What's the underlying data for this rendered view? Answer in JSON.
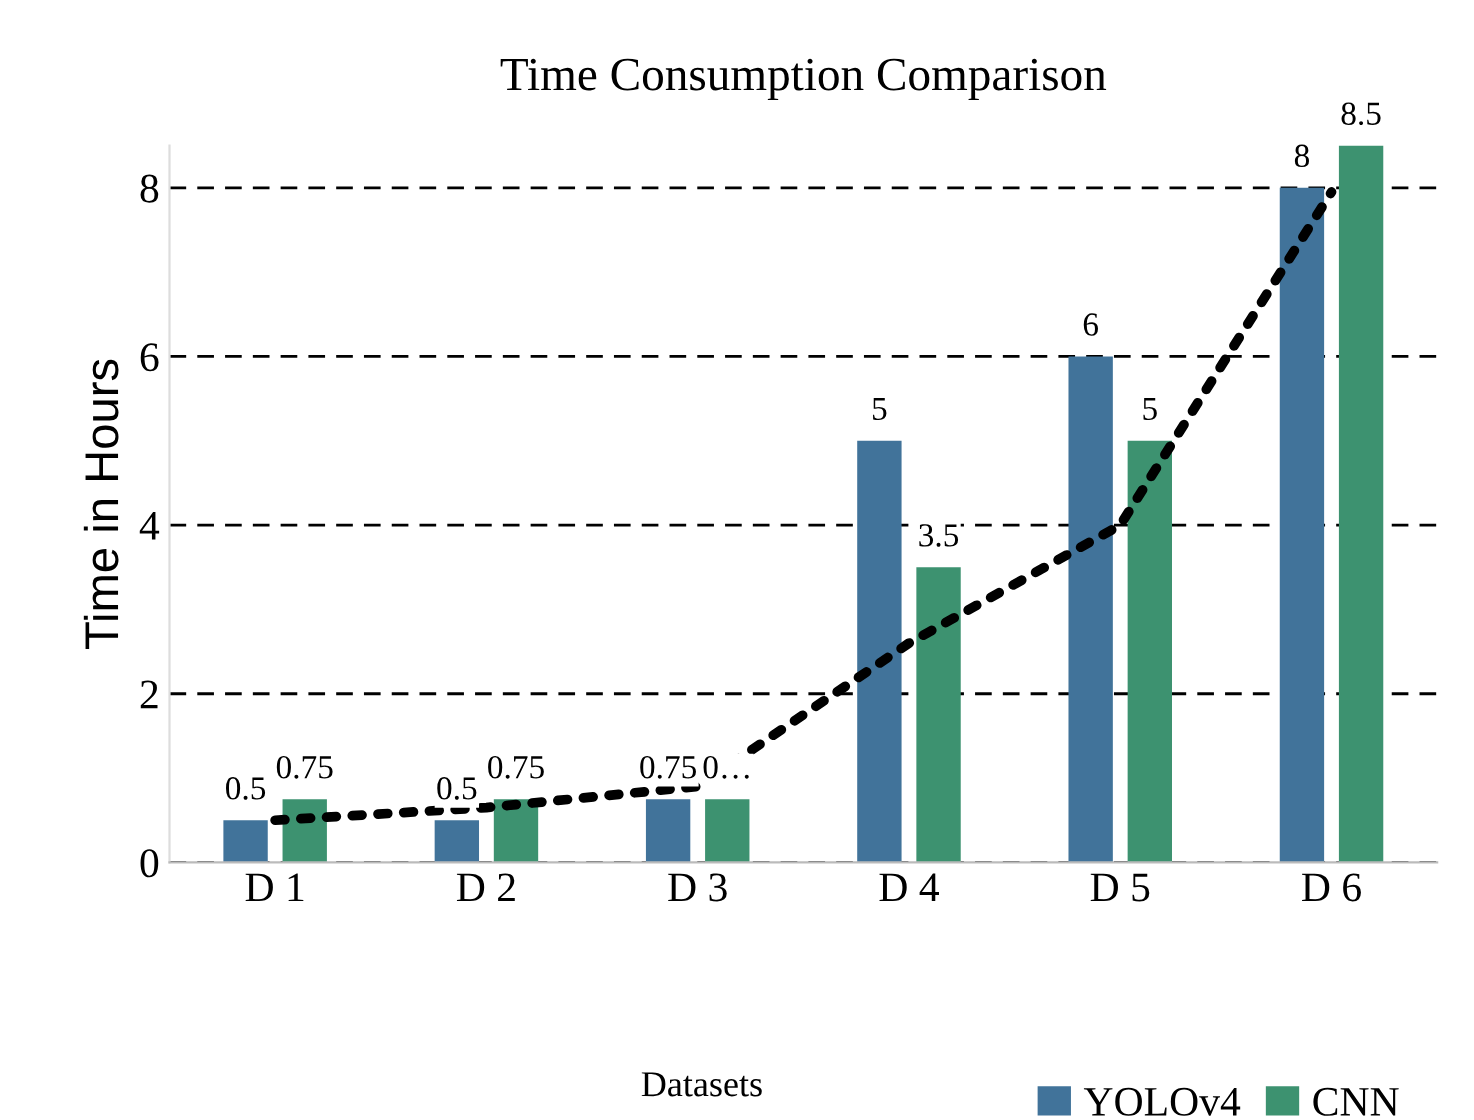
{
  "chart_data": {
    "type": "bar",
    "title": "Time Consumption Comparison",
    "xlabel": "Datasets",
    "ylabel": "Time in Hours",
    "categories": [
      "D 1",
      "D 2",
      "D 3",
      "D 4",
      "D 5",
      "D 6"
    ],
    "series": [
      {
        "name": "YOLOv4",
        "color": "#41739a",
        "values": [
          0.5,
          0.5,
          0.75,
          5,
          6,
          8
        ],
        "value_labels": [
          "0.5",
          "0.5",
          "0.75",
          "5",
          "6",
          "8"
        ]
      },
      {
        "name": "CNN",
        "color": "#3d9270",
        "values": [
          0.75,
          0.75,
          0.75,
          3.5,
          5,
          8.5
        ],
        "value_labels": [
          "0.75",
          "0.75",
          "0…",
          "3.5",
          "5",
          "8.5"
        ]
      },
      {
        "type": "line",
        "color": "#000000",
        "line_style": "dotted",
        "values": [
          0.5,
          0.65,
          0.9,
          2.6,
          4.0,
          7.95
        ]
      }
    ],
    "ylim": [
      0,
      8.5
    ],
    "yticks": [
      0,
      2,
      4,
      6,
      8
    ],
    "grid": "y",
    "legend": "bottom right"
  }
}
